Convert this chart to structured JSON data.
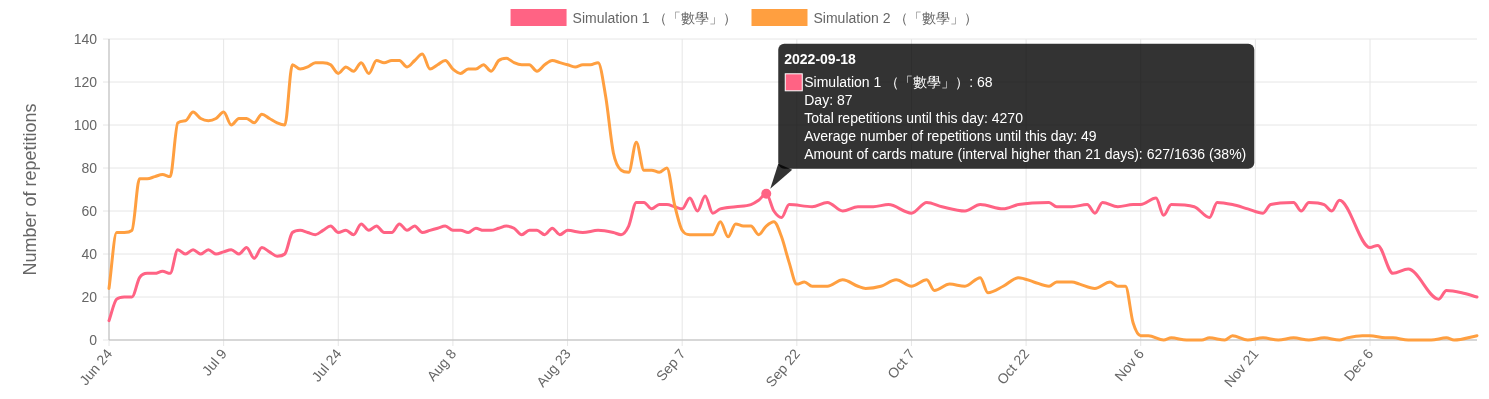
{
  "chart_data": {
    "type": "line",
    "ylabel": "Number of repetitions",
    "grid": true,
    "legend": "top",
    "line_style": "solid",
    "xlim": [
      "2022-06-24",
      "2022-12-20"
    ],
    "ylim": [
      0,
      140
    ],
    "yticks": [
      0,
      20,
      40,
      60,
      80,
      100,
      120,
      140
    ],
    "xticks": [
      {
        "value": "2022-06-24",
        "label": "Jun 24"
      },
      {
        "value": "2022-07-09",
        "label": "Jul 9"
      },
      {
        "value": "2022-07-24",
        "label": "Jul 24"
      },
      {
        "value": "2022-08-08",
        "label": "Aug 8"
      },
      {
        "value": "2022-08-23",
        "label": "Aug 23"
      },
      {
        "value": "2022-09-07",
        "label": "Sep 7"
      },
      {
        "value": "2022-09-22",
        "label": "Sep 22"
      },
      {
        "value": "2022-10-07",
        "label": "Oct 7"
      },
      {
        "value": "2022-10-22",
        "label": "Oct 22"
      },
      {
        "value": "2022-11-06",
        "label": "Nov 6"
      },
      {
        "value": "2022-11-21",
        "label": "Nov 21"
      },
      {
        "value": "2022-12-06",
        "label": "Dec 6"
      }
    ],
    "series": [
      {
        "name": "Simulation 1 （「數學」）",
        "color": "#ff6384",
        "x": [
          "2022-06-24",
          "2022-06-25",
          "2022-06-26",
          "2022-06-27",
          "2022-06-28",
          "2022-06-29",
          "2022-06-30",
          "2022-07-01",
          "2022-07-02",
          "2022-07-03",
          "2022-07-04",
          "2022-07-05",
          "2022-07-06",
          "2022-07-07",
          "2022-07-08",
          "2022-07-09",
          "2022-07-10",
          "2022-07-11",
          "2022-07-12",
          "2022-07-13",
          "2022-07-14",
          "2022-07-15",
          "2022-07-16",
          "2022-07-17",
          "2022-07-18",
          "2022-07-19",
          "2022-07-20",
          "2022-07-21",
          "2022-07-22",
          "2022-07-23",
          "2022-07-24",
          "2022-07-25",
          "2022-07-26",
          "2022-07-27",
          "2022-07-28",
          "2022-07-29",
          "2022-07-30",
          "2022-07-31",
          "2022-08-01",
          "2022-08-02",
          "2022-08-03",
          "2022-08-04",
          "2022-08-05",
          "2022-08-06",
          "2022-08-07",
          "2022-08-08",
          "2022-08-09",
          "2022-08-10",
          "2022-08-11",
          "2022-08-12",
          "2022-08-13",
          "2022-08-14",
          "2022-08-15",
          "2022-08-16",
          "2022-08-17",
          "2022-08-18",
          "2022-08-19",
          "2022-08-20",
          "2022-08-21",
          "2022-08-22",
          "2022-08-23",
          "2022-08-25",
          "2022-08-27",
          "2022-08-29",
          "2022-08-30",
          "2022-08-31",
          "2022-09-01",
          "2022-09-02",
          "2022-09-03",
          "2022-09-04",
          "2022-09-05",
          "2022-09-06",
          "2022-09-07",
          "2022-09-08",
          "2022-09-09",
          "2022-09-10",
          "2022-09-11",
          "2022-09-12",
          "2022-09-14",
          "2022-09-16",
          "2022-09-17",
          "2022-09-18",
          "2022-09-19",
          "2022-09-20",
          "2022-09-21",
          "2022-09-24",
          "2022-09-26",
          "2022-09-28",
          "2022-09-30",
          "2022-10-02",
          "2022-10-04",
          "2022-10-07",
          "2022-10-09",
          "2022-10-11",
          "2022-10-14",
          "2022-10-16",
          "2022-10-19",
          "2022-10-21",
          "2022-10-25",
          "2022-10-26",
          "2022-10-28",
          "2022-10-30",
          "2022-10-31",
          "2022-11-01",
          "2022-11-03",
          "2022-11-05",
          "2022-11-06",
          "2022-11-08",
          "2022-11-09",
          "2022-11-10",
          "2022-11-13",
          "2022-11-15",
          "2022-11-16",
          "2022-11-18",
          "2022-11-20",
          "2022-11-22",
          "2022-11-23",
          "2022-11-26",
          "2022-11-27",
          "2022-11-28",
          "2022-11-30",
          "2022-12-01",
          "2022-12-02",
          "2022-12-06",
          "2022-12-07",
          "2022-12-09",
          "2022-12-11",
          "2022-12-15",
          "2022-12-16",
          "2022-12-18",
          "2022-12-20"
        ],
        "values": [
          9,
          19,
          20,
          20,
          29,
          31,
          31,
          32,
          31,
          42,
          40,
          42,
          40,
          42,
          40,
          41,
          42,
          40,
          43,
          38,
          43,
          41,
          39,
          40,
          50,
          51,
          50,
          49,
          51,
          53,
          50,
          51,
          49,
          54,
          51,
          53,
          50,
          50,
          54,
          51,
          53,
          50,
          51,
          52,
          53,
          51,
          51,
          50,
          52,
          51,
          51,
          52,
          53,
          52,
          49,
          51,
          51,
          49,
          52,
          49,
          51,
          50,
          51,
          50,
          49,
          53,
          64,
          64,
          61,
          63,
          63,
          62,
          61,
          66,
          60,
          67,
          59,
          61,
          62,
          63,
          65,
          68,
          60,
          57,
          63,
          62,
          64,
          60,
          62,
          62,
          63,
          59,
          64,
          62,
          60,
          63,
          61,
          63,
          64,
          62,
          62,
          63,
          59,
          64,
          62,
          63,
          63,
          66,
          58,
          63,
          62,
          57,
          64,
          63,
          61,
          59,
          63,
          64,
          60,
          64,
          63,
          60,
          65,
          43,
          44,
          31,
          33,
          19,
          23,
          22,
          20
        ]
      },
      {
        "name": "Simulation 2 （「數學」）",
        "color": "#ff9f40",
        "x": [
          "2022-06-24",
          "2022-06-25",
          "2022-06-26",
          "2022-06-27",
          "2022-06-28",
          "2022-06-29",
          "2022-06-30",
          "2022-07-01",
          "2022-07-02",
          "2022-07-03",
          "2022-07-04",
          "2022-07-05",
          "2022-07-06",
          "2022-07-07",
          "2022-07-08",
          "2022-07-09",
          "2022-07-10",
          "2022-07-11",
          "2022-07-12",
          "2022-07-13",
          "2022-07-14",
          "2022-07-15",
          "2022-07-16",
          "2022-07-17",
          "2022-07-18",
          "2022-07-19",
          "2022-07-20",
          "2022-07-21",
          "2022-07-22",
          "2022-07-23",
          "2022-07-24",
          "2022-07-25",
          "2022-07-26",
          "2022-07-27",
          "2022-07-28",
          "2022-07-29",
          "2022-07-30",
          "2022-07-31",
          "2022-08-01",
          "2022-08-02",
          "2022-08-03",
          "2022-08-04",
          "2022-08-05",
          "2022-08-06",
          "2022-08-07",
          "2022-08-08",
          "2022-08-09",
          "2022-08-10",
          "2022-08-11",
          "2022-08-12",
          "2022-08-13",
          "2022-08-14",
          "2022-08-15",
          "2022-08-16",
          "2022-08-17",
          "2022-08-18",
          "2022-08-19",
          "2022-08-20",
          "2022-08-21",
          "2022-08-22",
          "2022-08-23",
          "2022-08-24",
          "2022-08-25",
          "2022-08-26",
          "2022-08-27",
          "2022-08-28",
          "2022-08-29",
          "2022-08-30",
          "2022-08-31",
          "2022-09-01",
          "2022-09-02",
          "2022-09-03",
          "2022-09-04",
          "2022-09-05",
          "2022-09-06",
          "2022-09-07",
          "2022-09-08",
          "2022-09-09",
          "2022-09-10",
          "2022-09-11",
          "2022-09-12",
          "2022-09-13",
          "2022-09-14",
          "2022-09-15",
          "2022-09-16",
          "2022-09-17",
          "2022-09-18",
          "2022-09-19",
          "2022-09-20",
          "2022-09-21",
          "2022-09-22",
          "2022-09-23",
          "2022-09-24",
          "2022-09-26",
          "2022-09-28",
          "2022-09-30",
          "2022-10-01",
          "2022-10-03",
          "2022-10-05",
          "2022-10-07",
          "2022-10-09",
          "2022-10-10",
          "2022-10-12",
          "2022-10-14",
          "2022-10-16",
          "2022-10-17",
          "2022-10-19",
          "2022-10-21",
          "2022-10-23",
          "2022-10-25",
          "2022-10-26",
          "2022-10-28",
          "2022-10-29",
          "2022-10-31",
          "2022-11-02",
          "2022-11-03",
          "2022-11-04",
          "2022-11-05",
          "2022-11-06",
          "2022-11-07",
          "2022-11-09",
          "2022-11-10",
          "2022-11-12",
          "2022-11-14",
          "2022-11-15",
          "2022-11-17",
          "2022-11-18",
          "2022-11-20",
          "2022-11-22",
          "2022-11-24",
          "2022-11-26",
          "2022-11-28",
          "2022-11-30",
          "2022-12-02",
          "2022-12-03",
          "2022-12-05",
          "2022-12-06",
          "2022-12-08",
          "2022-12-09",
          "2022-12-11",
          "2022-12-14",
          "2022-12-16",
          "2022-12-17",
          "2022-12-20"
        ],
        "values": [
          24,
          50,
          50,
          51,
          75,
          75,
          76,
          77,
          76,
          101,
          102,
          106,
          103,
          102,
          103,
          106,
          100,
          103,
          103,
          101,
          105,
          103,
          101,
          100,
          128,
          126,
          127,
          129,
          129,
          128,
          124,
          127,
          125,
          129,
          124,
          130,
          129,
          130,
          130,
          127,
          130,
          133,
          126,
          128,
          130,
          126,
          124,
          126,
          126,
          128,
          125,
          130,
          131,
          129,
          128,
          128,
          125,
          128,
          130,
          129,
          128,
          127,
          128,
          128,
          129,
          113,
          87,
          79,
          78,
          92,
          79,
          79,
          78,
          80,
          63,
          51,
          49,
          49,
          49,
          49,
          55,
          48,
          54,
          53,
          53,
          49,
          53,
          55,
          48,
          36,
          26,
          27,
          25,
          25,
          28,
          25,
          24,
          25,
          28,
          25,
          28,
          23,
          26,
          25,
          29,
          22,
          25,
          29,
          27,
          25,
          27,
          27,
          26,
          24,
          27,
          25,
          25,
          8,
          2,
          2,
          0,
          1,
          0,
          0,
          1,
          0,
          2,
          0,
          1,
          0,
          1,
          0,
          1,
          0,
          1,
          2,
          2,
          1,
          1,
          0,
          0,
          1,
          0,
          2
        ]
      }
    ],
    "annotations": [
      {
        "text": "2022-09-18\nSimulation 1 （「數學」）: 68\nDay: 87\nTotal repetitions until this day: 4270\nAverage number of repetitions until this day: 49\nAmount of cards mature (interval higher than 21 days): 627/1636 (38%)",
        "x": "2022-09-18",
        "y": 68
      }
    ]
  }
}
